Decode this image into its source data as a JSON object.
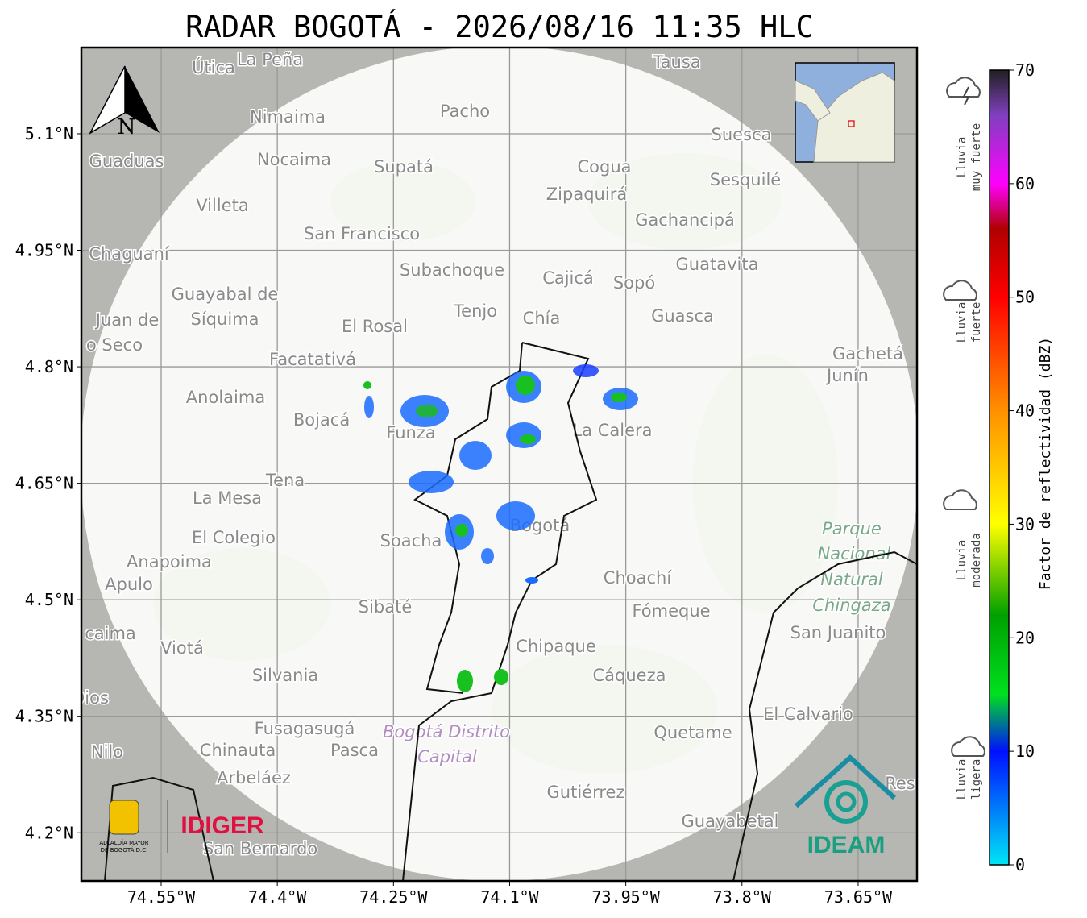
{
  "map": {
    "title": "RADAR BOGOTÁ - 2026/08/16 11:35 HLC",
    "lonlim": [
      -74.653,
      -73.574
    ],
    "latlim": [
      4.138,
      5.211
    ],
    "lon_ticks": [
      {
        "value": -74.55,
        "label": "74.55°W"
      },
      {
        "value": -74.4,
        "label": "74.4°W"
      },
      {
        "value": -74.25,
        "label": "74.25°W"
      },
      {
        "value": -74.1,
        "label": "74.1°W"
      },
      {
        "value": -73.95,
        "label": "73.95°W"
      },
      {
        "value": -73.8,
        "label": "73.8°W"
      },
      {
        "value": -73.65,
        "label": "73.65°W"
      }
    ],
    "lat_ticks": [
      {
        "value": 5.1,
        "label": "5.1°N"
      },
      {
        "value": 4.95,
        "label": "4.95°N"
      },
      {
        "value": 4.8,
        "label": "4.8°N"
      },
      {
        "value": 4.65,
        "label": "4.65°N"
      },
      {
        "value": 4.5,
        "label": "4.5°N"
      },
      {
        "value": 4.35,
        "label": "4.35°N"
      },
      {
        "value": 4.2,
        "label": "4.2°N"
      }
    ],
    "north": "N",
    "places": [
      "Útica",
      "La Peña",
      "Tausa",
      "Pacho",
      "Nimaima",
      "Guaduas",
      "Nocaima",
      "Supatá",
      "Cogua",
      "Suesca",
      "Sesquilé",
      "Zipaquirá",
      "Villeta",
      "Gachancipá",
      "San Francisco",
      "Chaguaní",
      "Guatavita",
      "Subachoque",
      "Cajicá",
      "Sopó",
      "Guayabal de",
      "Síquima",
      "Tenjo",
      "Chía",
      "Guasca",
      "Juan de",
      "El Rosal",
      "o Seco",
      "Facatativá",
      "Gachetá",
      "Junín",
      "Anolaima",
      "Bojacá",
      "Funza",
      "La Calera",
      "Tena",
      "La Mesa",
      "El Colegio",
      "Soacha",
      "Bogotá",
      "Parque",
      "Nacional",
      "Natural",
      "Chingaza",
      "Anapoima",
      "Apulo",
      "Choachí",
      "Sibaté",
      "Fómeque",
      "San Juanito",
      "caima",
      "Viotá",
      "Chipaque",
      "Silvania",
      "Cáqueza",
      "Dios",
      "El Calvario",
      "Fusagasugá",
      "Bogotá Distrito",
      "Quetame",
      "Nilo",
      "Chinauta",
      "Pasca",
      "Capital",
      "Arbeláez",
      "Gutiérrez",
      "Guayabetal",
      "San Bernardo",
      "Res"
    ],
    "logos": {
      "left_name": "IDIGER",
      "alcaldia_1": "ALCALDÍA MAYOR",
      "alcaldia_2": "DE BOGOTÁ D.C.",
      "right_name": "IDEAM"
    },
    "colorbar": {
      "lim": [
        0,
        70
      ],
      "ticks": [
        0,
        10,
        20,
        30,
        40,
        50,
        60,
        70
      ],
      "label": "Factor de reflectividad (dBZ)",
      "stops": [
        {
          "value": 0,
          "color": "#00e5f5"
        },
        {
          "value": 10,
          "color": "#0010ff"
        },
        {
          "value": 15,
          "color": "#00e020"
        },
        {
          "value": 22,
          "color": "#00a000"
        },
        {
          "value": 30,
          "color": "#ffff00"
        },
        {
          "value": 40,
          "color": "#ff9000"
        },
        {
          "value": 50,
          "color": "#ff0000"
        },
        {
          "value": 56,
          "color": "#b00000"
        },
        {
          "value": 60,
          "color": "#ff00ff"
        },
        {
          "value": 66,
          "color": "#8040c0"
        },
        {
          "value": 70,
          "color": "#202020"
        }
      ]
    },
    "rain_levels": [
      {
        "lines": [
          "Lluvia",
          "muy fuerte"
        ]
      },
      {
        "lines": [
          "Lluvia",
          "fuerte"
        ]
      },
      {
        "lines": [
          "Lluvia",
          "moderada"
        ]
      },
      {
        "lines": [
          "Lluvia",
          "ligera"
        ]
      }
    ]
  }
}
